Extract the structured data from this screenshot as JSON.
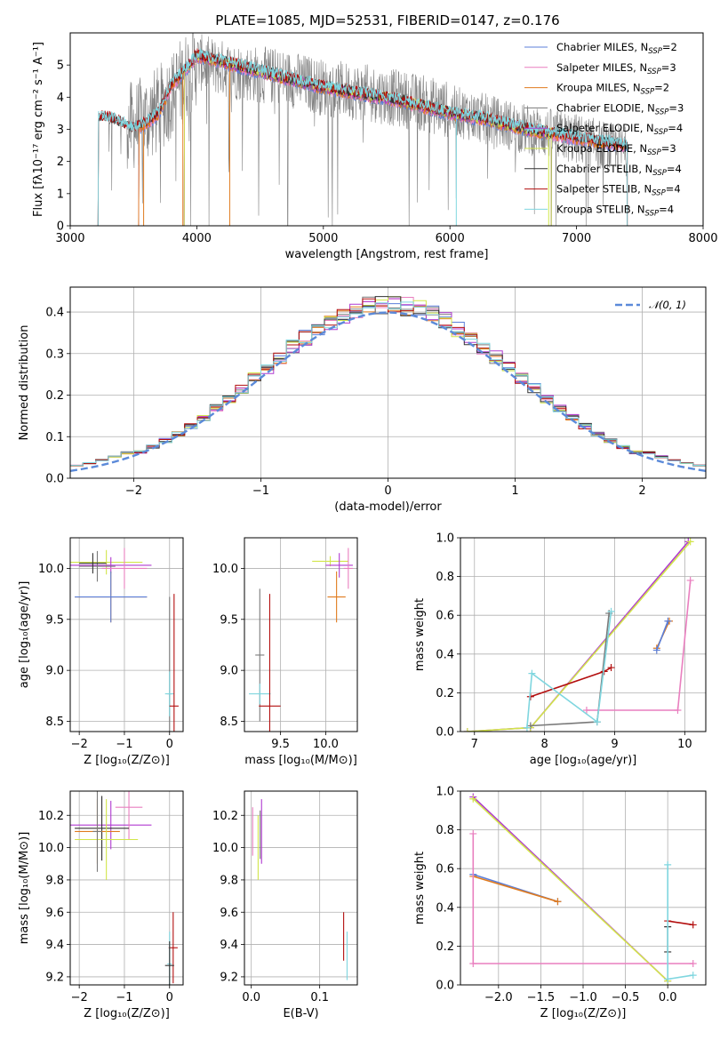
{
  "title": "PLATE=1085, MJD=52531, FIBERID=0147, z=0.176",
  "colors": {
    "chabrier_miles": "#5b7fd9",
    "salpeter_miles": "#e97fbf",
    "kroupa_miles": "#e07b1f",
    "chabrier_elodie": "#7a7a7a",
    "salpeter_elodie": "#b03ad0",
    "kroupa_elodie": "#d2e64a",
    "chabrier_stelib": "#333333",
    "salpeter_stelib": "#b30f0f",
    "kroupa_stelib": "#7fd6df",
    "normal": "#5b8ad9",
    "grid": "#b0b0b0"
  },
  "legend": [
    {
      "key": "chabrier_miles",
      "prefix": "Chabrier MILES, N",
      "sub": "SSP",
      "suffix": "=2"
    },
    {
      "key": "salpeter_miles",
      "prefix": "Salpeter MILES, N",
      "sub": "SSP",
      "suffix": "=3"
    },
    {
      "key": "kroupa_miles",
      "prefix": "Kroupa MILES, N",
      "sub": "SSP",
      "suffix": "=2"
    },
    {
      "key": "chabrier_elodie",
      "prefix": "Chabrier ELODIE, N",
      "sub": "SSP",
      "suffix": "=3"
    },
    {
      "key": "salpeter_elodie",
      "prefix": "Salpeter ELODIE, N",
      "sub": "SSP",
      "suffix": "=4"
    },
    {
      "key": "kroupa_elodie",
      "prefix": "Kroupa ELODIE, N",
      "sub": "SSP",
      "suffix": "=3"
    },
    {
      "key": "chabrier_stelib",
      "prefix": "Chabrier STELIB, N",
      "sub": "SSP",
      "suffix": "=4"
    },
    {
      "key": "salpeter_stelib",
      "prefix": "Salpeter STELIB, N",
      "sub": "SSP",
      "suffix": "=4"
    },
    {
      "key": "kroupa_stelib",
      "prefix": "Kroupa STELIB, N",
      "sub": "SSP",
      "suffix": "=4"
    }
  ],
  "chart_data": [
    {
      "id": "spectrum",
      "type": "line",
      "xlabel": "wavelength [Angstrom, rest frame]",
      "ylabel": "Flux [fλ10⁻¹⁷ erg cm⁻² s⁻¹ A⁻¹]",
      "xlim": [
        3000,
        8000
      ],
      "ylim": [
        0,
        6
      ],
      "xticks": [
        3000,
        4000,
        5000,
        6000,
        7000,
        8000
      ],
      "yticks": [
        0,
        1,
        2,
        3,
        4,
        5
      ],
      "grid": false,
      "legend_position": "right",
      "observed_envelope": {
        "x": [
          3220,
          3500,
          3700,
          4000,
          4300,
          4700,
          5000,
          5400,
          5800,
          6200,
          6600,
          7000,
          7400
        ],
        "y": [
          3.4,
          3.1,
          3.6,
          5.1,
          4.8,
          4.6,
          4.3,
          4.1,
          3.8,
          3.4,
          3.0,
          2.7,
          2.3
        ]
      },
      "model_continuum": {
        "x": [
          3220,
          3350,
          3500,
          3600,
          3700,
          3800,
          3900,
          4000,
          4200,
          4400,
          4700,
          5000,
          5300,
          5600,
          6000,
          6300,
          6600,
          6900,
          7200,
          7400
        ],
        "y": [
          3.4,
          3.3,
          3.0,
          3.2,
          3.5,
          4.4,
          4.8,
          5.3,
          5.1,
          4.9,
          4.6,
          4.3,
          4.1,
          3.9,
          3.5,
          3.3,
          3.0,
          2.8,
          2.6,
          2.5
        ]
      }
    },
    {
      "id": "residuals",
      "type": "line",
      "xlabel": "(data-model)/error",
      "ylabel": "Normed distribution",
      "xlim": [
        -2.5,
        2.5
      ],
      "ylim": [
        0,
        0.46
      ],
      "xticks": [
        -2,
        -1,
        0,
        1,
        2
      ],
      "yticks": [
        0.0,
        0.1,
        0.2,
        0.3,
        0.4
      ],
      "grid": true,
      "legend": "𝒩(0, 1)",
      "legend_position": "top-right",
      "bin_width": 0.1
    },
    {
      "id": "age-vs-Z",
      "type": "scatter",
      "xlabel": "Z [log₁₀(Z/Z⊙)]",
      "ylabel": "age  [log₁₀(age/yr)]",
      "xlim": [
        -2.2,
        0.3
      ],
      "ylim": [
        8.4,
        10.3
      ],
      "xticks": [
        -2,
        -1,
        0
      ],
      "yticks": [
        8.5,
        9.0,
        9.5,
        10.0
      ],
      "grid": true,
      "points": [
        {
          "s": "kroupa_elodie",
          "x": -1.4,
          "y": 10.06,
          "ex": 0.8,
          "ey": 0.12
        },
        {
          "s": "salpeter_elodie",
          "x": -1.3,
          "y": 10.03,
          "ex": 0.9,
          "ey": 0.08
        },
        {
          "s": "salpeter_miles",
          "x": -1.0,
          "y": 10.0,
          "ex": 0.5,
          "ey": 0.2
        },
        {
          "s": "chabrier_elodie",
          "x": -1.6,
          "y": 10.02,
          "ex": 0.4,
          "ey": 0.15
        },
        {
          "s": "chabrier_stelib",
          "x": -1.7,
          "y": 10.05,
          "ex": 0.3,
          "ey": 0.1
        },
        {
          "s": "kroupa_miles",
          "x": -1.3,
          "y": 9.72,
          "ex": 0.8,
          "ey": 0.25
        },
        {
          "s": "chabrier_miles",
          "x": -1.3,
          "y": 9.72,
          "ex": 0.8,
          "ey": 0.25
        },
        {
          "s": "chabrier_elodie",
          "x": 0.0,
          "y": 8.77,
          "ex": 0.05,
          "ey": 0.95
        },
        {
          "s": "kroupa_stelib",
          "x": 0.0,
          "y": 8.77,
          "ex": 0.1,
          "ey": 0.22
        },
        {
          "s": "salpeter_stelib",
          "x": 0.1,
          "y": 8.65,
          "ex": 0.1,
          "ey": 1.1
        }
      ]
    },
    {
      "id": "age-vs-mass",
      "type": "scatter",
      "xlabel": "mass [log₁₀(M/M⊙)]",
      "ylabel": "",
      "xlim": [
        9.1,
        10.35
      ],
      "ylim": [
        8.4,
        10.3
      ],
      "xticks": [
        9.5,
        10.0
      ],
      "yticks": [
        8.5,
        9.0,
        9.5,
        10.0
      ],
      "grid": true,
      "points": [
        {
          "s": "kroupa_elodie",
          "x": 10.05,
          "y": 10.07,
          "ex": 0.2,
          "ey": 0.05
        },
        {
          "s": "salpeter_elodie",
          "x": 10.15,
          "y": 10.03,
          "ex": 0.15,
          "ey": 0.12
        },
        {
          "s": "salpeter_miles",
          "x": 10.25,
          "y": 10.0,
          "ex": 0.05,
          "ey": 0.2
        },
        {
          "s": "kroupa_miles",
          "x": 10.12,
          "y": 9.72,
          "ex": 0.1,
          "ey": 0.25
        },
        {
          "s": "chabrier_elodie",
          "x": 9.27,
          "y": 9.15,
          "ex": 0.05,
          "ey": 0.65
        },
        {
          "s": "kroupa_stelib",
          "x": 9.27,
          "y": 8.77,
          "ex": 0.12,
          "ey": 0.1
        },
        {
          "s": "salpeter_stelib",
          "x": 9.38,
          "y": 8.65,
          "ex": 0.12,
          "ey": 1.1
        }
      ]
    },
    {
      "id": "massweight-vs-age",
      "type": "line",
      "xlabel": "age  [log₁₀(age/yr)]",
      "ylabel": "mass weight",
      "xlim": [
        6.8,
        10.3
      ],
      "ylim": [
        0,
        1.0
      ],
      "xticks": [
        7,
        8,
        9,
        10
      ],
      "yticks": [
        0.0,
        0.2,
        0.4,
        0.6,
        0.8,
        1.0
      ],
      "grid": true,
      "series": [
        {
          "s": "kroupa_miles",
          "x": [
            9.6,
            9.78
          ],
          "y": [
            0.43,
            0.57
          ]
        },
        {
          "s": "chabrier_miles",
          "x": [
            9.6,
            9.76
          ],
          "y": [
            0.42,
            0.57
          ]
        },
        {
          "s": "salpeter_miles",
          "x": [
            8.6,
            9.9,
            10.08
          ],
          "y": [
            0.11,
            0.11,
            0.78
          ]
        },
        {
          "s": "salpeter_elodie",
          "x": [
            6.9,
            7.8,
            10.05
          ],
          "y": [
            0.0,
            0.02,
            0.98
          ]
        },
        {
          "s": "kroupa_elodie",
          "x": [
            6.9,
            7.8,
            10.08
          ],
          "y": [
            0.0,
            0.02,
            0.98
          ]
        },
        {
          "s": "chabrier_elodie",
          "x": [
            7.8,
            8.75,
            8.92
          ],
          "y": [
            0.03,
            0.05,
            0.61
          ]
        },
        {
          "s": "salpeter_stelib",
          "x": [
            7.8,
            8.85,
            8.95
          ],
          "y": [
            0.18,
            0.31,
            0.33
          ]
        },
        {
          "s": "kroupa_stelib",
          "x": [
            7.75,
            7.82,
            8.75,
            8.95
          ],
          "y": [
            0.02,
            0.3,
            0.05,
            0.62
          ]
        }
      ]
    },
    {
      "id": "mass-vs-Z",
      "type": "scatter",
      "xlabel": "Z [log₁₀(Z/Z⊙)]",
      "ylabel": "mass [log₁₀(M/M⊙)]",
      "xlim": [
        -2.2,
        0.3
      ],
      "ylim": [
        9.15,
        10.35
      ],
      "xticks": [
        -2,
        -1,
        0
      ],
      "yticks": [
        9.2,
        9.4,
        9.6,
        9.8,
        10.0,
        10.2
      ],
      "grid": true,
      "points": [
        {
          "s": "salpeter_elodie",
          "x": -1.3,
          "y": 10.14,
          "ex": 0.9,
          "ey": 0.15
        },
        {
          "s": "salpeter_miles",
          "x": -0.9,
          "y": 10.25,
          "ex": 0.3,
          "ey": 0.2
        },
        {
          "s": "chabrier_stelib",
          "x": -1.5,
          "y": 10.12,
          "ex": 0.6,
          "ey": 0.2
        },
        {
          "s": "kroupa_miles",
          "x": -1.6,
          "y": 10.1,
          "ex": 0.5,
          "ey": 0.2
        },
        {
          "s": "kroupa_elodie",
          "x": -1.4,
          "y": 10.05,
          "ex": 0.7,
          "ey": 0.25
        },
        {
          "s": "chabrier_elodie",
          "x": -1.6,
          "y": 10.1,
          "ex": 0.1,
          "ey": 0.25
        },
        {
          "s": "salpeter_stelib",
          "x": 0.08,
          "y": 9.38,
          "ex": 0.1,
          "ey": 0.22
        },
        {
          "s": "kroupa_stelib",
          "x": 0.0,
          "y": 9.28,
          "ex": 0.05,
          "ey": 0.2
        },
        {
          "s": "chabrier_stelib",
          "x": 0.0,
          "y": 9.27,
          "ex": 0.1,
          "ey": 0.15
        }
      ]
    },
    {
      "id": "mass-vs-EBV",
      "type": "scatter",
      "xlabel": "E(B-V)",
      "ylabel": "",
      "xlim": [
        -0.01,
        0.155
      ],
      "ylim": [
        9.15,
        10.35
      ],
      "xticks": [
        0.0,
        0.1
      ],
      "yticks": [
        9.2,
        9.4,
        9.6,
        9.8,
        10.0,
        10.2
      ],
      "grid": true,
      "points": [
        {
          "s": "salpeter_miles",
          "x": 0.002,
          "y": 10.1,
          "ex": 0,
          "ey": 0.15
        },
        {
          "s": "kroupa_elodie",
          "x": 0.01,
          "y": 10.0,
          "ex": 0,
          "ey": 0.2
        },
        {
          "s": "salpeter_elodie",
          "x": 0.015,
          "y": 10.1,
          "ex": 0,
          "ey": 0.2
        },
        {
          "s": "chabrier_elodie",
          "x": 0.013,
          "y": 10.08,
          "ex": 0,
          "ey": 0.15
        },
        {
          "s": "salpeter_stelib",
          "x": 0.135,
          "y": 9.45,
          "ex": 0,
          "ey": 0.15
        },
        {
          "s": "kroupa_stelib",
          "x": 0.14,
          "y": 9.33,
          "ex": 0,
          "ey": 0.15
        }
      ]
    },
    {
      "id": "massweight-vs-Z",
      "type": "line",
      "xlabel": "Z [log₁₀(Z/Z⊙)]",
      "ylabel": "mass weight",
      "xlim": [
        -2.45,
        0.45
      ],
      "ylim": [
        0,
        1.0
      ],
      "xticks": [
        -2.0,
        -1.5,
        -1.0,
        -0.5,
        0.0
      ],
      "yticks": [
        0.0,
        0.2,
        0.4,
        0.6,
        0.8,
        1.0
      ],
      "grid": true,
      "series": [
        {
          "s": "chabrier_miles",
          "x": [
            -2.3,
            -1.3
          ],
          "y": [
            0.57,
            0.43
          ]
        },
        {
          "s": "kroupa_miles",
          "x": [
            -2.3,
            -1.3
          ],
          "y": [
            0.56,
            0.43
          ]
        },
        {
          "s": "salpeter_elodie",
          "x": [
            -2.3,
            0.0
          ],
          "y": [
            0.97,
            0.02
          ]
        },
        {
          "s": "kroupa_elodie",
          "x": [
            -2.3,
            0.0
          ],
          "y": [
            0.96,
            0.02
          ]
        },
        {
          "s": "salpeter_miles",
          "x": [
            -2.3,
            -2.3,
            0.3
          ],
          "y": [
            0.78,
            0.11,
            0.11
          ]
        },
        {
          "s": "salpeter_stelib",
          "x": [
            0.0,
            0.3
          ],
          "y": [
            0.33,
            0.31
          ]
        },
        {
          "s": "chabrier_stelib",
          "x": [
            0.0,
            0.0
          ],
          "y": [
            0.3,
            0.17
          ]
        },
        {
          "s": "kroupa_stelib",
          "x": [
            0.0,
            0.0,
            0.3
          ],
          "y": [
            0.62,
            0.03,
            0.05
          ]
        }
      ]
    }
  ]
}
